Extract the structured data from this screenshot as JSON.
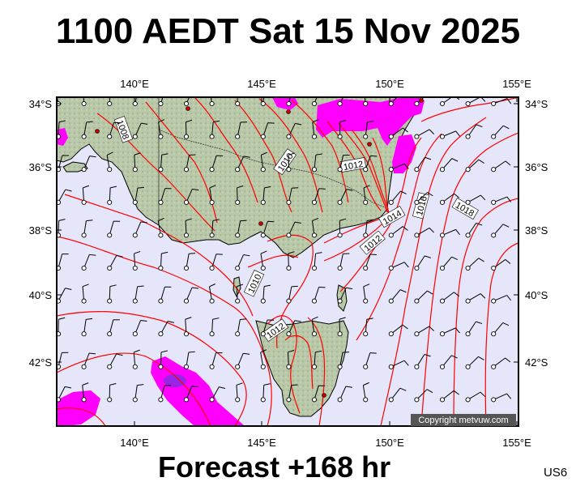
{
  "title": "1100 AEDT Sat 15 Nov 2025",
  "footer": "Forecast +168 hr",
  "model_code": "US6",
  "copyright": "Copyright metvuw.com",
  "colors": {
    "ocean": "#e6e6fa",
    "land": "#b4c4a4",
    "isobar": "#ff0000",
    "rain_light": "#ff00ff",
    "rain_heavy": "#8a2be2",
    "frame": "#000000"
  },
  "axes": {
    "lon_ticks": [
      "140°E",
      "145°E",
      "150°E",
      "155°E"
    ],
    "lat_ticks": [
      "34°S",
      "36°S",
      "38°S",
      "40°S",
      "42°S"
    ],
    "lon_range": [
      137,
      155
    ],
    "lat_range": [
      33.8,
      43.9
    ]
  },
  "isobar_labels": [
    "1008",
    "1010",
    "1012",
    "1014",
    "1016",
    "1018",
    "1012",
    "1010",
    "1012"
  ]
}
